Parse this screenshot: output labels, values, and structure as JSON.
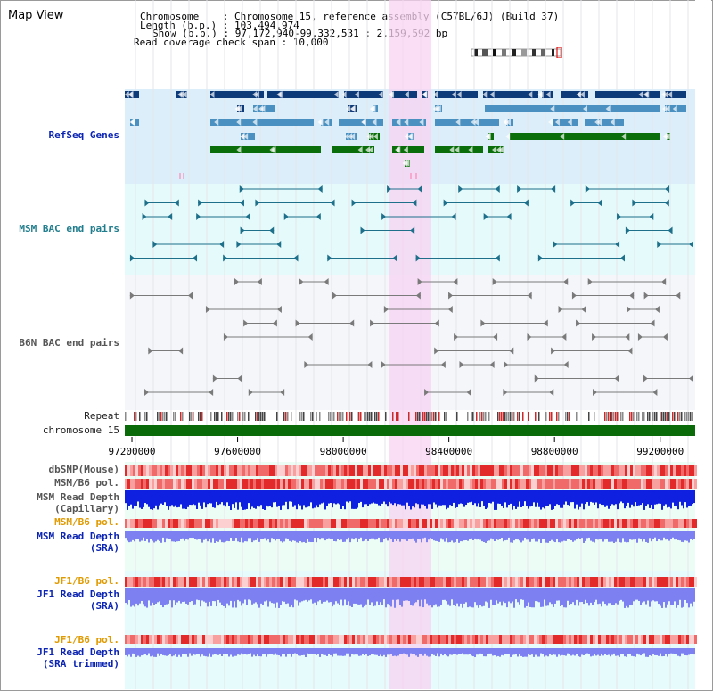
{
  "header": {
    "view_title": "Map View",
    "chromosome_line": "Chromosome    : Chromosome 15, reference assembly (C57BL/6J) (Build 37)",
    "length_line": "Length (b.p.) : 103,494,974",
    "show_line": "Show (b.p.) : 97,172,940-99,332,531 : 2,159,592 bp",
    "coverage_line": "Read coverage check span : 10,000"
  },
  "tracks": {
    "refseq": "RefSeq Genes",
    "msm_bac": "MSM BAC end pairs",
    "b6n_bac": "B6N BAC end pairs",
    "repeat": "Repeat",
    "chromosome": "chromosome 15",
    "dbsnp": "dbSNP(Mouse)",
    "msm_b6_pol_1": "MSM/B6 pol.",
    "msm_depth_cap_1": "MSM Read Depth",
    "msm_depth_cap_2": "(Capillary)",
    "msm_b6_pol_2": "MSM/B6 pol.",
    "msm_depth_sra_1": "MSM Read Depth",
    "msm_depth_sra_2": "(SRA)",
    "jf1_b6_pol_1": "JF1/B6 pol.",
    "jf1_depth_sra_1": "JF1 Read Depth",
    "jf1_depth_sra_2": "(SRA)",
    "jf1_b6_pol_2": "JF1/B6 pol.",
    "jf1_depth_trim_1": "JF1 Read Depth",
    "jf1_depth_trim_2": "(SRA trimmed)"
  },
  "axis": {
    "ticks": [
      "97200000",
      "97600000",
      "98000000",
      "98400000",
      "98800000",
      "99200000"
    ]
  },
  "colors": {
    "refseq_navy": "#0d3a78",
    "refseq_steel": "#4a90c0",
    "refseq_green": "#0a6e0a",
    "highlight": "#f7d3f1",
    "msm_bac": "#1d6f8a",
    "b6n_bac": "#7a7a7a",
    "chromosome_bar": "#0a6a0a",
    "depth_dark": "#1020e0",
    "depth_light": "#7c80f0",
    "pol_red": "#e83030"
  }
}
